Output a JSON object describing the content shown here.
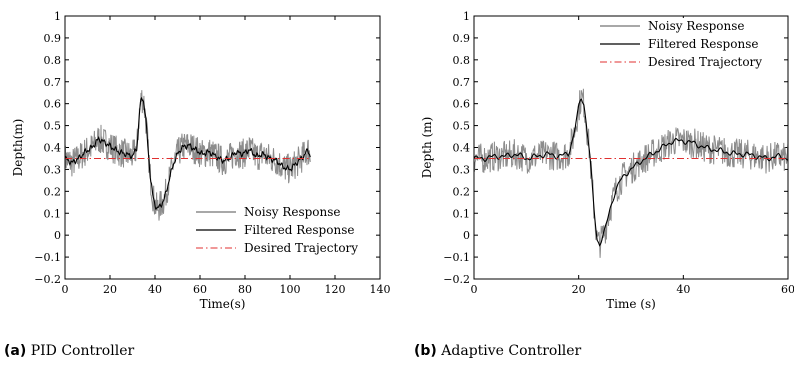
{
  "captions": [
    {
      "tag": "(a)",
      "text": "PID Controller"
    },
    {
      "tag": "(b)",
      "text": "Adaptive Controller"
    }
  ],
  "colors": {
    "noisy": "#8c8c8c",
    "filtered": "#000000",
    "desired": "#e03030"
  },
  "chart_data": [
    {
      "type": "line",
      "title": "",
      "xlabel": "Time(s)",
      "ylabel": "Depth(m)",
      "xlim": [
        0,
        140
      ],
      "ylim": [
        -0.2,
        1
      ],
      "xticks": [
        0,
        20,
        40,
        60,
        80,
        100,
        120,
        140
      ],
      "yticks": [
        -0.2,
        -0.1,
        0,
        0.1,
        0.2,
        0.3,
        0.4,
        0.5,
        0.6,
        0.7,
        0.8,
        0.9,
        1
      ],
      "xticklabels": [
        "0",
        "20",
        "40",
        "60",
        "80",
        "100",
        "120",
        "140"
      ],
      "yticklabels": [
        "−0.2",
        "−0.1",
        "0",
        "0.1",
        "0.2",
        "0.3",
        "0.4",
        "0.5",
        "0.6",
        "0.7",
        "0.8",
        "0.9",
        "1"
      ],
      "legend_position": "bottom-right",
      "legend": [
        "Noisy Response",
        "Filtered Response",
        "Desired Trajectory"
      ],
      "noise_amplitude": 0.07,
      "series": [
        {
          "name": "Filtered Response",
          "x": [
            0,
            3,
            6,
            9,
            12,
            15,
            18,
            21,
            24,
            27,
            30,
            32,
            33,
            34,
            35,
            36,
            37,
            38,
            39,
            40,
            41,
            42,
            44,
            46,
            48,
            50,
            52,
            55,
            58,
            61,
            64,
            67,
            70,
            73,
            76,
            79,
            82,
            85,
            88,
            91,
            94,
            97,
            100,
            103,
            106,
            108,
            109
          ],
          "y": [
            0.35,
            0.33,
            0.35,
            0.38,
            0.4,
            0.44,
            0.42,
            0.4,
            0.38,
            0.37,
            0.36,
            0.4,
            0.55,
            0.63,
            0.61,
            0.52,
            0.38,
            0.26,
            0.18,
            0.14,
            0.12,
            0.13,
            0.16,
            0.24,
            0.32,
            0.37,
            0.4,
            0.41,
            0.39,
            0.37,
            0.38,
            0.36,
            0.34,
            0.35,
            0.38,
            0.37,
            0.39,
            0.36,
            0.37,
            0.35,
            0.34,
            0.31,
            0.3,
            0.33,
            0.36,
            0.39,
            0.36
          ]
        },
        {
          "name": "Desired Trajectory",
          "x": [
            0,
            109
          ],
          "y": [
            0.35,
            0.35
          ]
        }
      ]
    },
    {
      "type": "line",
      "title": "",
      "xlabel": "Time (s)",
      "ylabel": "Depth (m)",
      "xlim": [
        0,
        60
      ],
      "ylim": [
        -0.2,
        1
      ],
      "xticks": [
        0,
        20,
        40,
        60
      ],
      "yticks": [
        -0.2,
        -0.1,
        0,
        0.1,
        0.2,
        0.3,
        0.4,
        0.5,
        0.6,
        0.7,
        0.8,
        0.9,
        1
      ],
      "xticklabels": [
        "0",
        "20",
        "40",
        "60"
      ],
      "yticklabels": [
        "−0.2",
        "−0.1",
        "0",
        "0.1",
        "0.2",
        "0.3",
        "0.4",
        "0.5",
        "0.6",
        "0.7",
        "0.8",
        "0.9",
        "1"
      ],
      "legend_position": "top-right",
      "legend": [
        "Noisy Response",
        "Filtered Response",
        "Desired Trajectory"
      ],
      "noise_amplitude": 0.07,
      "series": [
        {
          "name": "Filtered Response",
          "x": [
            0,
            2,
            4,
            6,
            8,
            10,
            12,
            14,
            16,
            18,
            19,
            20,
            20.5,
            21,
            22,
            23,
            23.5,
            24,
            25,
            26,
            27,
            28,
            29,
            30,
            32,
            34,
            36,
            38,
            40,
            42,
            44,
            46,
            48,
            50,
            52,
            54,
            56,
            58,
            60
          ],
          "y": [
            0.35,
            0.35,
            0.36,
            0.36,
            0.37,
            0.35,
            0.36,
            0.37,
            0.36,
            0.37,
            0.45,
            0.58,
            0.63,
            0.6,
            0.4,
            0.1,
            -0.02,
            -0.04,
            0.02,
            0.12,
            0.2,
            0.25,
            0.28,
            0.3,
            0.34,
            0.37,
            0.4,
            0.43,
            0.43,
            0.42,
            0.4,
            0.39,
            0.38,
            0.37,
            0.37,
            0.36,
            0.35,
            0.36,
            0.35
          ]
        },
        {
          "name": "Desired Trajectory",
          "x": [
            0,
            60
          ],
          "y": [
            0.35,
            0.35
          ]
        }
      ]
    }
  ]
}
